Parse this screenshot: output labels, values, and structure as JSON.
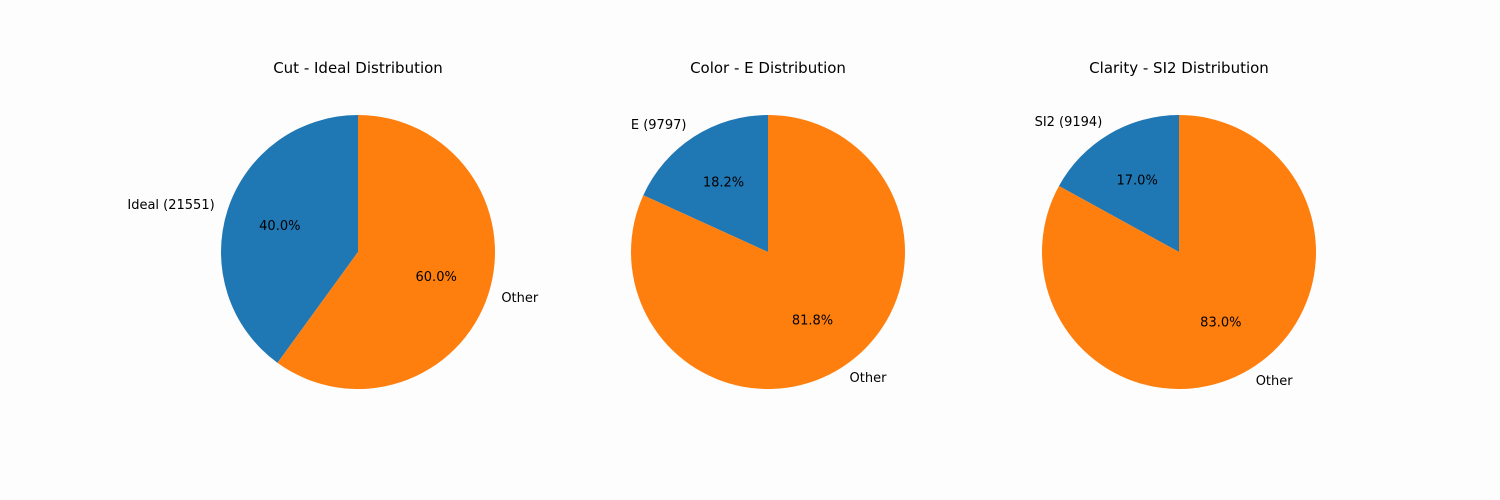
{
  "chart_data": [
    {
      "type": "pie",
      "title": "Cut - Ideal Distribution",
      "slices": [
        {
          "label": "Ideal (21551)",
          "value": 40.0,
          "pct_label": "40.0%",
          "color": "#1f77b4"
        },
        {
          "label": "Other",
          "value": 60.0,
          "pct_label": "60.0%",
          "color": "#ff7f0e"
        }
      ],
      "start_angle": 90,
      "direction": "counterclockwise"
    },
    {
      "type": "pie",
      "title": "Color - E Distribution",
      "slices": [
        {
          "label": "E (9797)",
          "value": 18.2,
          "pct_label": "18.2%",
          "color": "#1f77b4"
        },
        {
          "label": "Other",
          "value": 81.8,
          "pct_label": "81.8%",
          "color": "#ff7f0e"
        }
      ],
      "start_angle": 90,
      "direction": "counterclockwise"
    },
    {
      "type": "pie",
      "title": "Clarity - SI2 Distribution",
      "slices": [
        {
          "label": "SI2 (9194)",
          "value": 17.0,
          "pct_label": "17.0%",
          "color": "#1f77b4"
        },
        {
          "label": "Other",
          "value": 83.0,
          "pct_label": "83.0%",
          "color": "#ff7f0e"
        }
      ],
      "start_angle": 90,
      "direction": "counterclockwise"
    }
  ]
}
